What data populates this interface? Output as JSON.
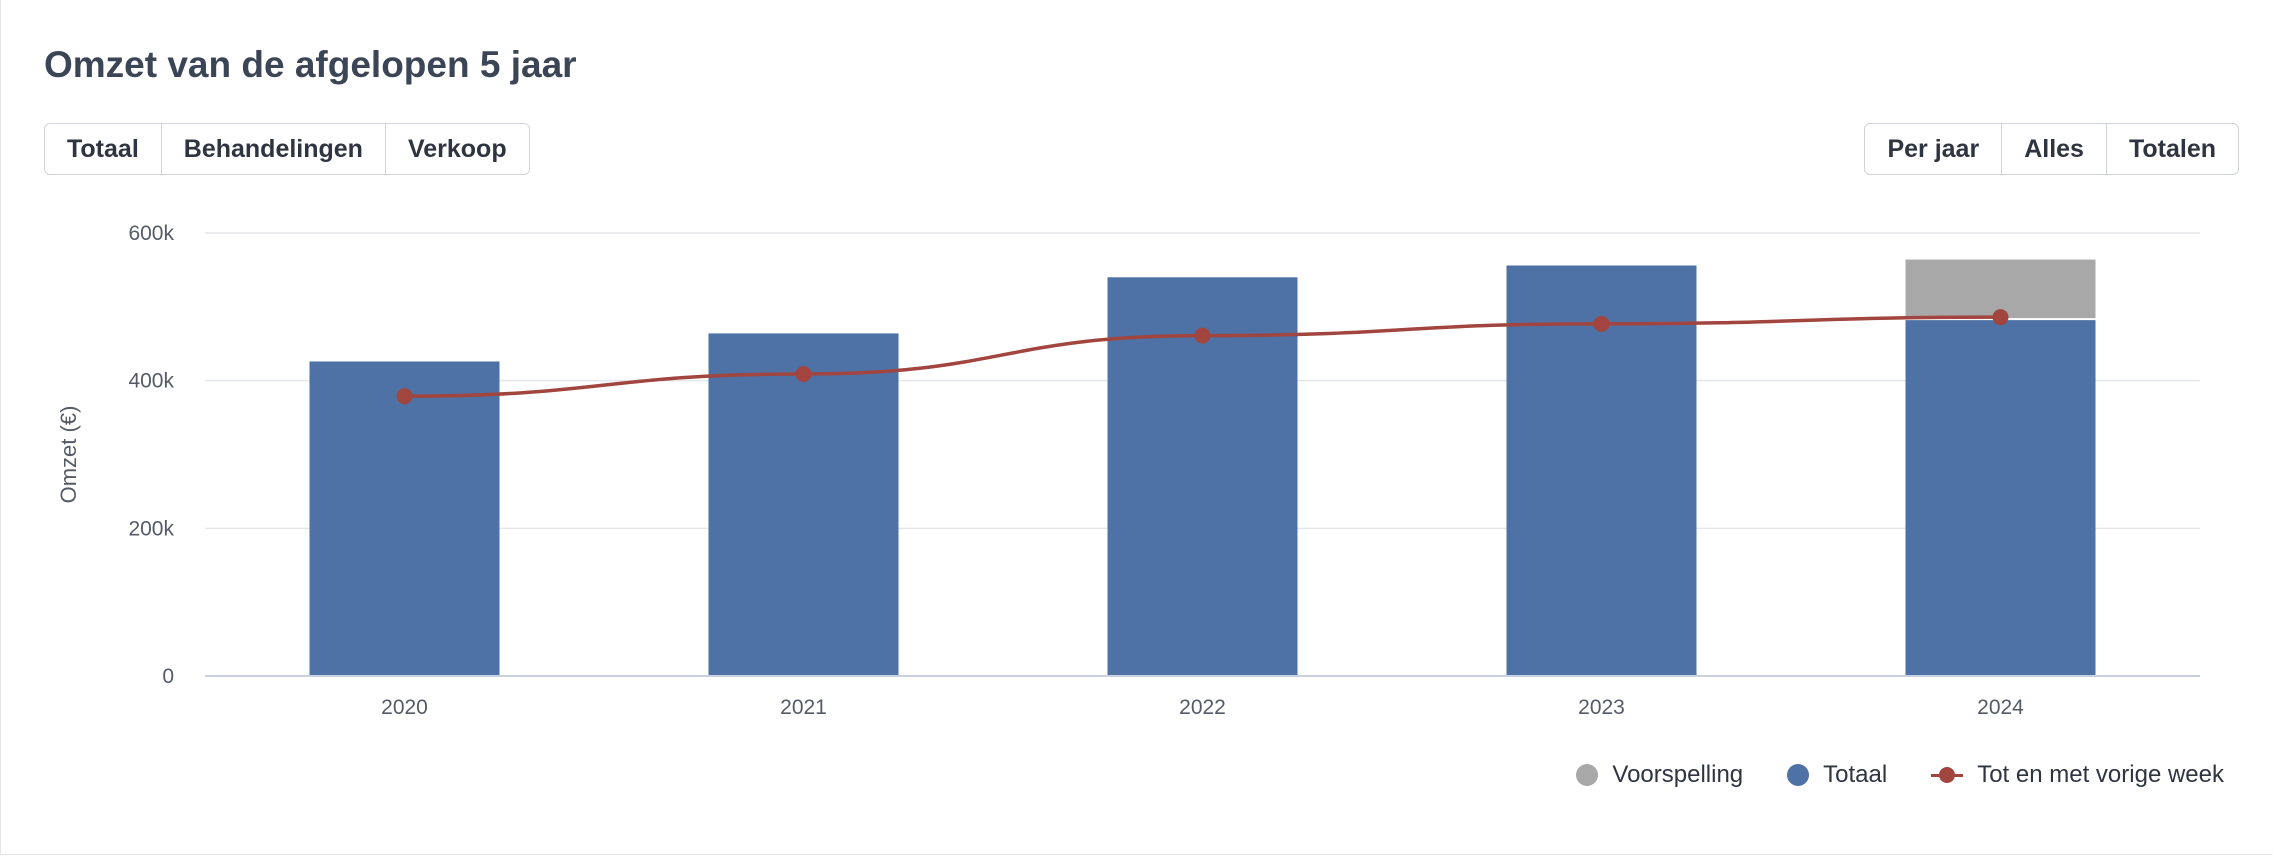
{
  "title": "Omzet van de afgelopen 5 jaar",
  "left_buttons": [
    {
      "label": "Totaal",
      "active": true
    },
    {
      "label": "Behandelingen",
      "active": false
    },
    {
      "label": "Verkoop",
      "active": false
    }
  ],
  "right_buttons": [
    {
      "label": "Per jaar",
      "active": false
    },
    {
      "label": "Alles",
      "active": false
    },
    {
      "label": "Totalen",
      "active": true
    }
  ],
  "colors": {
    "totaal": "#4e71a6",
    "voorspelling": "#a8a8a8",
    "line": "#a2453e",
    "active_button": "#4e76b5"
  },
  "chart_data": {
    "type": "bar",
    "categories": [
      "2020",
      "2021",
      "2022",
      "2023",
      "2024"
    ],
    "ylabel": "Omzet (€)",
    "xlabel": "",
    "ylim": [
      0,
      600000
    ],
    "yticks": [
      0,
      200000,
      400000,
      600000
    ],
    "ytick_labels": [
      "0",
      "200k",
      "400k",
      "600k"
    ],
    "grid": true,
    "legend_position": "bottom-right",
    "series": [
      {
        "name": "Totaal",
        "kind": "bar",
        "stacked": true,
        "values": [
          426000,
          464000,
          540000,
          556000,
          482000
        ]
      },
      {
        "name": "Voorspelling",
        "kind": "bar",
        "stacked": true,
        "values": [
          0,
          0,
          0,
          0,
          82000
        ]
      },
      {
        "name": "Tot en met vorige week",
        "kind": "line",
        "values": [
          379000,
          409000,
          461000,
          477000,
          486000
        ]
      }
    ]
  }
}
